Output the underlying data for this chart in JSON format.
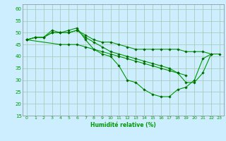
{
  "xlabel": "Humidité relative (%)",
  "background_color": "#cceeff",
  "grid_color": "#aaccbb",
  "line_color": "#009900",
  "marker_color": "#006600",
  "xlim": [
    -0.5,
    23.5
  ],
  "ylim": [
    15,
    62
  ],
  "yticks": [
    15,
    20,
    25,
    30,
    35,
    40,
    45,
    50,
    55,
    60
  ],
  "xticks": [
    0,
    1,
    2,
    3,
    4,
    5,
    6,
    7,
    8,
    9,
    10,
    11,
    12,
    13,
    14,
    15,
    16,
    17,
    18,
    19,
    20,
    21,
    22,
    23
  ],
  "series": [
    [
      47,
      48,
      48,
      51,
      50,
      50,
      51,
      49,
      47,
      46,
      46,
      45,
      44,
      43,
      43,
      43,
      43,
      43,
      43,
      42,
      42,
      42,
      41,
      41
    ],
    [
      47,
      48,
      48,
      50,
      50,
      51,
      52,
      47,
      43,
      41,
      40,
      36,
      30,
      29,
      26,
      24,
      23,
      23,
      26,
      27,
      30,
      39,
      41,
      null
    ],
    [
      47,
      null,
      null,
      null,
      45,
      45,
      45,
      44,
      43,
      42,
      41,
      40,
      39,
      38,
      37,
      36,
      35,
      34,
      33,
      32,
      null,
      null,
      null,
      null
    ],
    [
      47,
      48,
      48,
      50,
      50,
      50,
      51,
      48,
      46,
      44,
      42,
      41,
      40,
      39,
      38,
      37,
      36,
      35,
      33,
      29,
      29,
      33,
      41,
      null
    ]
  ]
}
